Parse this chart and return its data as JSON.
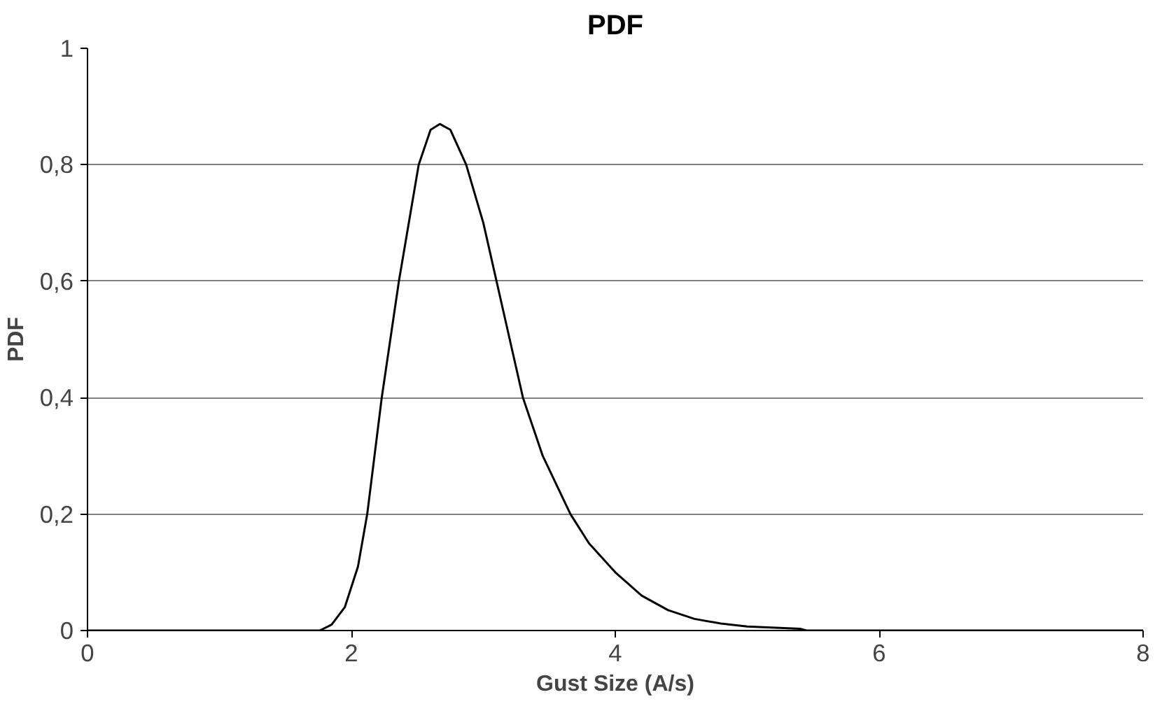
{
  "chart_data": {
    "type": "line",
    "title": "PDF",
    "xlabel": "Gust Size (A/s)",
    "ylabel": "PDF",
    "x": [
      0,
      1.76,
      1.85,
      1.95,
      2.05,
      2.12,
      2.23,
      2.36,
      2.51,
      2.6,
      2.67,
      2.75,
      2.87,
      3.0,
      3.1,
      3.2,
      3.3,
      3.45,
      3.66,
      3.8,
      4.0,
      4.2,
      4.4,
      4.6,
      4.8,
      5.0,
      5.4,
      5.45,
      8
    ],
    "series": [
      {
        "color": "#000000",
        "values": [
          0,
          0,
          0.01,
          0.04,
          0.11,
          0.2,
          0.4,
          0.6,
          0.8,
          0.86,
          0.87,
          0.86,
          0.8,
          0.7,
          0.6,
          0.5,
          0.4,
          0.3,
          0.2,
          0.15,
          0.1,
          0.06,
          0.035,
          0.02,
          0.012,
          0.007,
          0.003,
          0,
          0
        ]
      }
    ],
    "xlim": [
      0,
      8
    ],
    "xticks": [
      0,
      2,
      4,
      6,
      8
    ],
    "ylim": [
      0,
      1
    ],
    "yticks": [
      0,
      {
        "value": 0.2,
        "label": "0,2"
      },
      {
        "value": 0.4,
        "label": "0,4"
      },
      {
        "value": 0.6,
        "label": "0,6"
      },
      {
        "value": 0.8,
        "label": "0,8"
      },
      1
    ],
    "grid": "y",
    "marker": "none",
    "line_style": "solid"
  }
}
